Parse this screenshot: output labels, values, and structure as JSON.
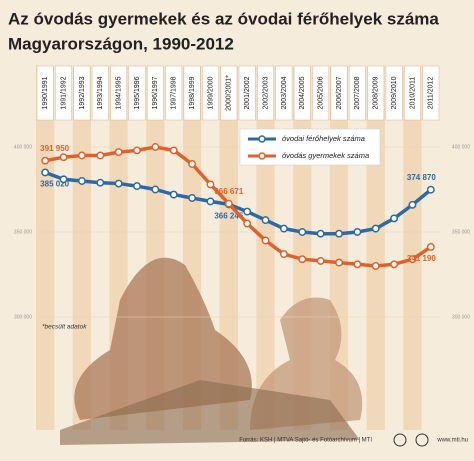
{
  "chart_data": {
    "type": "line",
    "title": "Az óvodás gyermekek és az óvodai férőhelyek száma",
    "subtitle": "Magyarországon, 1990-2012",
    "categories": [
      "1990/1991",
      "1991/1992",
      "1992/1993",
      "1993/1994",
      "1994/1995",
      "1995/1996",
      "1996/1997",
      "1997/1998",
      "1998/1999",
      "1999/2000",
      "2000/2001*",
      "2001/2002",
      "2002/2003",
      "2003/2004",
      "2004/2005",
      "2005/2006",
      "2006/2007",
      "2007/2008",
      "2008/2009",
      "2009/2010",
      "2010/2011",
      "2011/2012"
    ],
    "series": [
      {
        "name": "óvodai férőhelyek száma",
        "color": "#2d6aa3",
        "values": [
          385020,
          381000,
          380000,
          379000,
          378500,
          377000,
          375000,
          372000,
          370000,
          368000,
          366245,
          362000,
          357000,
          352000,
          350000,
          349000,
          349000,
          350000,
          352000,
          358000,
          366000,
          374870
        ],
        "value_labels": [
          "385 020",
          null,
          null,
          null,
          null,
          null,
          null,
          null,
          null,
          null,
          "366 245",
          null,
          null,
          null,
          null,
          null,
          null,
          null,
          null,
          null,
          null,
          "374 870"
        ]
      },
      {
        "name": "óvodás gyermekek száma",
        "color": "#e0622a",
        "values": [
          391950,
          394000,
          395000,
          395000,
          397000,
          398000,
          400000,
          398000,
          390000,
          378000,
          366671,
          355000,
          345000,
          337000,
          334000,
          333000,
          332000,
          331000,
          330000,
          331000,
          334000,
          341190
        ],
        "value_labels": [
          "391 950",
          null,
          null,
          null,
          null,
          null,
          null,
          null,
          null,
          null,
          "366 671",
          null,
          null,
          null,
          null,
          null,
          null,
          null,
          null,
          null,
          null,
          "341 190"
        ]
      }
    ],
    "ylim": [
      300000,
      400000
    ],
    "yticks": [
      {
        "value": 300000,
        "label": "300 000"
      },
      {
        "value": 350000,
        "label": "350 000"
      },
      {
        "value": 400000,
        "label": "400 000"
      }
    ],
    "note": "*becsült adatok",
    "source": "Forrás: KSH | MTVA Sajtó- és Fotóarchívum | MTI",
    "website": "www.mti.hu"
  }
}
